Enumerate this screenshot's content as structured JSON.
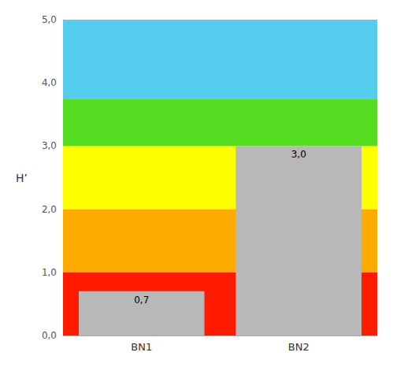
{
  "chart_data": {
    "type": "bar",
    "ylabel": "H’",
    "categories": [
      "BN1",
      "BN2"
    ],
    "values": [
      0.7,
      3.0
    ],
    "value_labels": [
      "0,7",
      "3,0"
    ],
    "data_labels": true,
    "color": "#b8b8b8",
    "ylim": [
      0,
      5.0
    ],
    "yticks": [
      {
        "value": 0.0,
        "label": "0,0"
      },
      {
        "value": 1.0,
        "label": "1,0"
      },
      {
        "value": 2.0,
        "label": "2,0"
      },
      {
        "value": 3.0,
        "label": "3,0"
      },
      {
        "value": 4.0,
        "label": "4,0"
      },
      {
        "value": 5.0,
        "label": "5,0"
      }
    ],
    "bands": [
      {
        "from": 0.0,
        "to": 1.0,
        "color": "#ff1a00"
      },
      {
        "from": 1.0,
        "to": 2.0,
        "color": "#ffaa00"
      },
      {
        "from": 2.0,
        "to": 3.0,
        "color": "#ffff00"
      },
      {
        "from": 3.0,
        "to": 3.75,
        "color": "#55dd22"
      },
      {
        "from": 3.75,
        "to": 5.0,
        "color": "#55ccee"
      }
    ],
    "grid": false
  }
}
